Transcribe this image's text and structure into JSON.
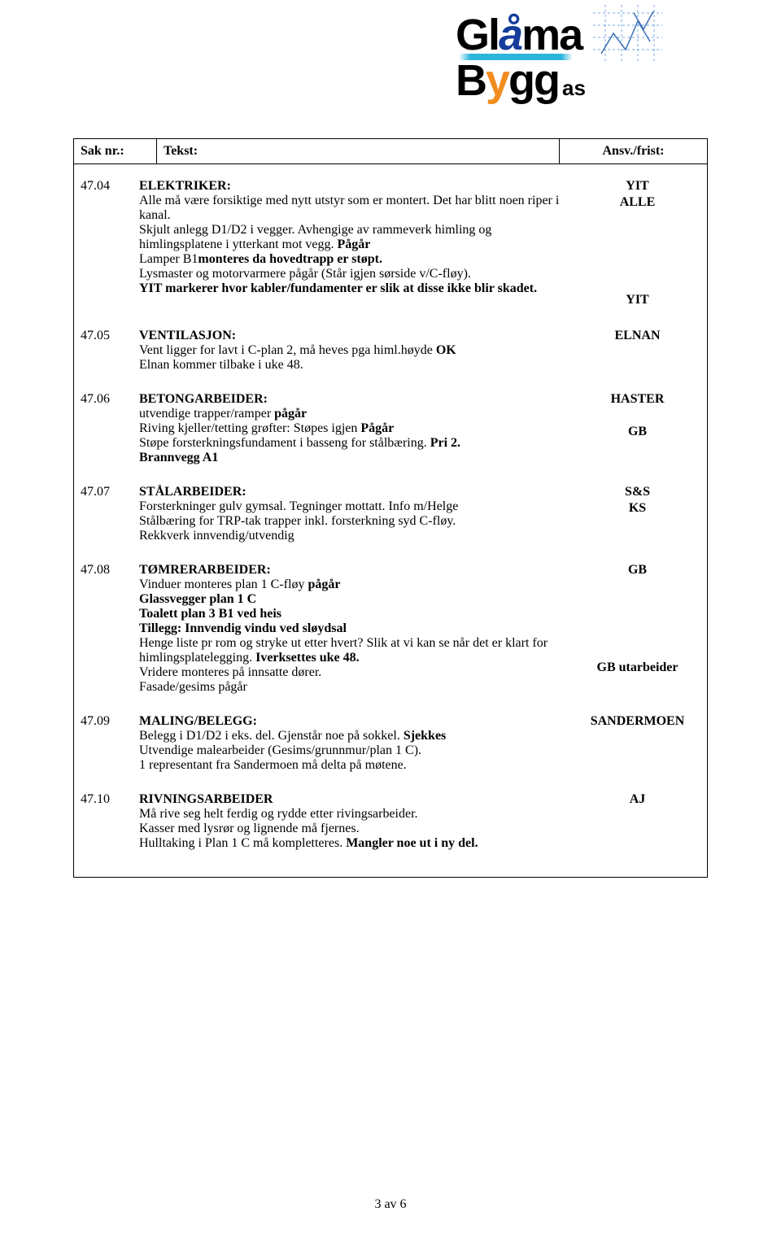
{
  "logo": {
    "line1_pre": "Gl",
    "line1_accent": "å",
    "line1_post": "ma",
    "line2": "Bygg",
    "line2_suffix": "as"
  },
  "header": {
    "sak": "Sak nr.:",
    "tekst": "Tekst:",
    "ansv": "Ansv./frist:"
  },
  "items": [
    {
      "nr": "47.04",
      "title": "ELEKTRIKER:",
      "body": [
        {
          "text": "Alle må være forsiktige med nytt utstyr som er montert. Det har blitt noen riper i kanal."
        },
        {
          "text": "Skjult anlegg D1/D2 i vegger. Avhengige av rammeverk himling og himlingsplatene i ytterkant mot vegg. ",
          "bold_suffix": "Pågår"
        },
        {
          "pre": "Lamper B1",
          "bold_mid": "monteres da hovedtrapp er støpt."
        },
        {
          "text": "Lysmaster og motorvarmere pågår (Står igjen sørside v/C-fløy)."
        },
        {
          "bold_only": "YIT markerer hvor kabler/fundamenter er slik at disse ikke blir skadet."
        }
      ],
      "ansv": [
        "YIT",
        "ALLE",
        "",
        "",
        "",
        "",
        "",
        "YIT"
      ]
    },
    {
      "nr": "47.05",
      "title": "VENTILASJON:",
      "body": [
        {
          "text": "Vent ligger for lavt i C-plan 2, må heves pga himl.høyde ",
          "bold_suffix": "OK"
        },
        {
          "text": "Elnan kommer tilbake i uke 48."
        }
      ],
      "ansv": [
        "ELNAN"
      ]
    },
    {
      "nr": "47.06",
      "title": "BETONGARBEIDER:",
      "body": [
        {
          "text": "utvendige trapper/ramper ",
          "bold_suffix": "pågår"
        },
        {
          "text": "Riving kjeller/tetting grøfter: Støpes igjen ",
          "bold_suffix": "Pågår"
        },
        {
          "text": "Støpe forsterkningsfundament i basseng for stålbæring. ",
          "bold_suffix": "Pri 2."
        },
        {
          "bold_only": "Brannvegg A1"
        }
      ],
      "ansv": [
        "HASTER",
        "",
        "GB"
      ]
    },
    {
      "nr": "47.07",
      "title": "STÅLARBEIDER:",
      "body": [
        {
          "text": "Forsterkninger gulv gymsal. Tegninger mottatt. Info m/Helge"
        },
        {
          "text": "Stålbæring for TRP-tak trapper inkl. forsterkning syd C-fløy."
        },
        {
          "text": "Rekkverk innvendig/utvendig"
        }
      ],
      "ansv": [
        "S&S",
        "KS"
      ]
    },
    {
      "nr": "47.08",
      "title": "TØMRERARBEIDER:",
      "body": [
        {
          "text": "Vinduer monteres plan 1 C-fløy ",
          "bold_suffix": "pågår"
        },
        {
          "bold_only": "Glassvegger plan 1 C"
        },
        {
          "bold_only": "Toalett plan 3 B1 ved heis"
        },
        {
          "bold_pre": "Tillegg: Innvendig vindu ved sløydsal"
        },
        {
          "text": "Henge liste pr rom og stryke ut etter hvert? Slik at vi kan se når det er klart for himlingsplatelegging. ",
          "bold_suffix": "Iverksettes uke 48."
        },
        {
          "text": "Vridere monteres på innsatte dører."
        },
        {
          "text": "Fasade/gesims pågår"
        }
      ],
      "ansv": [
        "GB",
        "",
        "",
        "",
        "",
        "",
        "GB utarbeider"
      ]
    },
    {
      "nr": "47.09",
      "title": "MALING/BELEGG:",
      "body": [
        {
          "text": "Belegg i D1/D2 i eks. del. Gjenstår noe på sokkel. ",
          "bold_suffix": "Sjekkes"
        },
        {
          "text": "Utvendige malearbeider (Gesims/grunnmur/plan 1 C)."
        },
        {
          "text": "1 representant fra Sandermoen må delta på møtene."
        }
      ],
      "ansv": [
        "SANDERMOEN"
      ]
    },
    {
      "nr": "47.10",
      "title": "RIVNINGSARBEIDER",
      "body": [
        {
          "text": "Må rive seg helt ferdig og rydde etter rivingsarbeider."
        },
        {
          "text": "Kasser med lysrør og lignende må fjernes."
        },
        {
          "text": "Hulltaking i Plan 1 C må kompletteres. ",
          "bold_suffix": "Mangler noe ut i ny del."
        }
      ],
      "ansv": [
        "AJ"
      ]
    }
  ],
  "footer": "3 av 6"
}
